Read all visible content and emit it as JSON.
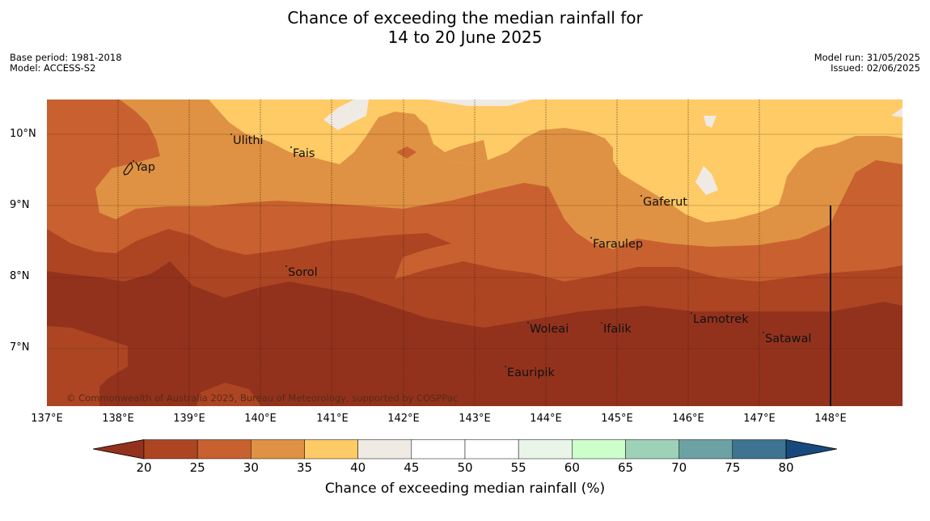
{
  "title_line1": "Chance of exceeding the median rainfall for",
  "title_line2": "14 to 20 June 2025",
  "meta": {
    "base_period": "Base period: 1981-2018",
    "model": "Model: ACCESS-S2",
    "model_run": "Model run: 31/05/2025",
    "issued": "Issued: 02/06/2025"
  },
  "lat_labels": [
    "10°N",
    "9°N",
    "8°N",
    "7°N"
  ],
  "lon_labels": [
    "137°E",
    "138°E",
    "139°E",
    "140°E",
    "141°E",
    "142°E",
    "143°E",
    "144°E",
    "145°E",
    "146°E",
    "147°E",
    "148°E"
  ],
  "places": {
    "yap": "Yap",
    "ulithi": "Ulithi",
    "fais": "Fais",
    "gaferut": "Gaferut",
    "faraulep": "Faraulep",
    "sorol": "Sorol",
    "lamotrek": "Lamotrek",
    "satawal": "Satawal",
    "woleai": "Woleai",
    "ifalik": "Ifalik",
    "eauripik": "Eauripik"
  },
  "copyright": "© Commonwealth of Australia 2025, Bureau of Meteorology, supported by COSPPac",
  "colorbar": {
    "ticks": [
      "20",
      "25",
      "30",
      "35",
      "40",
      "45",
      "50",
      "55",
      "60",
      "65",
      "70",
      "75",
      "80"
    ],
    "colors": [
      "#ad4523",
      "#c8612f",
      "#df9243",
      "#fecb66",
      "#efeae4",
      "#ffffff",
      "#ffffff",
      "#eaf5ea",
      "#ccffcc",
      "#9dd2b9",
      "#6da2a4",
      "#3e7491"
    ],
    "low_color": "#92321d",
    "high_color": "#17497c",
    "label": "Chance of exceeding median rainfall (%)"
  },
  "map_colors": {
    "band_20_less": "#92321d",
    "band_20_25": "#ad4523",
    "band_25_30": "#c8612f",
    "band_30_35": "#df9243",
    "band_35_40": "#fecb66",
    "band_40_45": "#efeae4"
  }
}
